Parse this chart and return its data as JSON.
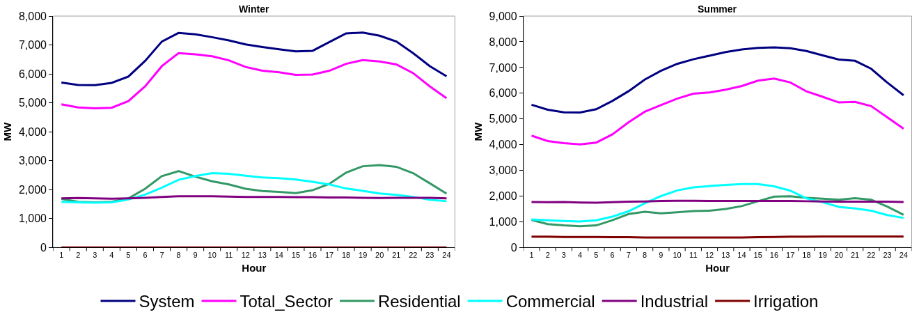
{
  "chart_data": [
    {
      "type": "line",
      "title": "Winter",
      "xlabel": "Hour",
      "ylabel": "MW",
      "x": [
        1,
        2,
        3,
        4,
        5,
        6,
        7,
        8,
        9,
        10,
        11,
        12,
        13,
        14,
        15,
        16,
        17,
        18,
        19,
        20,
        21,
        22,
        23,
        24
      ],
      "xlim": [
        0.5,
        24.5
      ],
      "xticks": [
        1,
        2,
        3,
        4,
        5,
        6,
        7,
        8,
        9,
        10,
        11,
        12,
        13,
        14,
        15,
        16,
        17,
        18,
        19,
        20,
        21,
        22,
        23,
        24
      ],
      "ylim": [
        0,
        8000
      ],
      "yticks": [
        {
          "value": 0,
          "label": "0"
        },
        {
          "value": 1000,
          "label": "1,000"
        },
        {
          "value": 2000,
          "label": "2,000"
        },
        {
          "value": 3000,
          "label": "3,000"
        },
        {
          "value": 4000,
          "label": "4,000"
        },
        {
          "value": 5000,
          "label": "5,000"
        },
        {
          "value": 6000,
          "label": "6,000"
        },
        {
          "value": 7000,
          "label": "7,000"
        },
        {
          "value": 8000,
          "label": "8,000"
        }
      ],
      "grid": false,
      "marker": "none",
      "line_style": "solid",
      "legend": "bottom",
      "series": [
        {
          "name": "System",
          "color": "#000080",
          "values": [
            5700,
            5620,
            5610,
            5690,
            5910,
            6450,
            7120,
            7420,
            7370,
            7270,
            7160,
            7020,
            6930,
            6850,
            6780,
            6800,
            7100,
            7400,
            7430,
            7320,
            7120,
            6720,
            6270,
            5920
          ]
        },
        {
          "name": "Total_Sector",
          "color": "#ff00ff",
          "values": [
            4950,
            4840,
            4810,
            4830,
            5060,
            5570,
            6270,
            6720,
            6680,
            6610,
            6470,
            6240,
            6110,
            6060,
            5970,
            5980,
            6110,
            6350,
            6480,
            6430,
            6330,
            6030,
            5570,
            5160
          ]
        },
        {
          "name": "Residential",
          "color": "#339966",
          "values": [
            1680,
            1580,
            1560,
            1580,
            1700,
            2030,
            2470,
            2640,
            2450,
            2290,
            2180,
            2030,
            1950,
            1920,
            1880,
            1980,
            2200,
            2590,
            2810,
            2850,
            2790,
            2570,
            2220,
            1860
          ]
        },
        {
          "name": "Commercial",
          "color": "#00ffff",
          "values": [
            1580,
            1560,
            1550,
            1560,
            1660,
            1830,
            2070,
            2340,
            2470,
            2570,
            2550,
            2480,
            2420,
            2400,
            2350,
            2270,
            2180,
            2040,
            1960,
            1870,
            1820,
            1750,
            1650,
            1600
          ]
        },
        {
          "name": "Industrial",
          "color": "#800080",
          "values": [
            1700,
            1710,
            1700,
            1690,
            1700,
            1720,
            1750,
            1770,
            1770,
            1770,
            1760,
            1750,
            1750,
            1750,
            1740,
            1740,
            1730,
            1730,
            1720,
            1710,
            1720,
            1720,
            1720,
            1700
          ]
        },
        {
          "name": "Irrigation",
          "color": "#800000",
          "values": [
            0,
            0,
            0,
            0,
            0,
            0,
            0,
            0,
            0,
            0,
            0,
            0,
            0,
            0,
            0,
            0,
            0,
            0,
            0,
            0,
            0,
            0,
            0,
            0
          ]
        }
      ]
    },
    {
      "type": "line",
      "title": "Summer",
      "xlabel": "Hour",
      "ylabel": "MW",
      "x": [
        1,
        2,
        3,
        4,
        5,
        6,
        7,
        8,
        9,
        10,
        11,
        12,
        13,
        14,
        15,
        16,
        17,
        18,
        19,
        20,
        21,
        22,
        23,
        24
      ],
      "xlim": [
        0.5,
        24.5
      ],
      "xticks": [
        1,
        2,
        3,
        4,
        5,
        6,
        7,
        8,
        9,
        10,
        11,
        12,
        13,
        14,
        15,
        16,
        17,
        18,
        19,
        20,
        21,
        22,
        23,
        24
      ],
      "ylim": [
        0,
        9000
      ],
      "yticks": [
        {
          "value": 0,
          "label": "0"
        },
        {
          "value": 1000,
          "label": "1,000"
        },
        {
          "value": 2000,
          "label": "2,000"
        },
        {
          "value": 3000,
          "label": "3,000"
        },
        {
          "value": 4000,
          "label": "4,000"
        },
        {
          "value": 5000,
          "label": "5,000"
        },
        {
          "value": 6000,
          "label": "6,000"
        },
        {
          "value": 7000,
          "label": "7,000"
        },
        {
          "value": 8000,
          "label": "8,000"
        },
        {
          "value": 9000,
          "label": "9,000"
        }
      ],
      "grid": false,
      "marker": "none",
      "line_style": "solid",
      "legend": "bottom",
      "series": [
        {
          "name": "System",
          "color": "#000080",
          "values": [
            5550,
            5360,
            5260,
            5250,
            5380,
            5700,
            6080,
            6530,
            6870,
            7140,
            7320,
            7460,
            7600,
            7700,
            7760,
            7780,
            7750,
            7640,
            7470,
            7310,
            7260,
            6950,
            6410,
            5920
          ]
        },
        {
          "name": "Total_Sector",
          "color": "#ff00ff",
          "values": [
            4350,
            4140,
            4060,
            4010,
            4080,
            4400,
            4870,
            5280,
            5540,
            5790,
            5980,
            6030,
            6140,
            6280,
            6490,
            6570,
            6420,
            6070,
            5860,
            5640,
            5660,
            5500,
            5060,
            4620
          ]
        },
        {
          "name": "Residential",
          "color": "#339966",
          "values": [
            1070,
            910,
            860,
            830,
            860,
            1060,
            1300,
            1390,
            1330,
            1370,
            1420,
            1430,
            1500,
            1610,
            1800,
            1980,
            1990,
            1930,
            1900,
            1860,
            1920,
            1860,
            1590,
            1270
          ]
        },
        {
          "name": "Commercial",
          "color": "#00ffff",
          "values": [
            1090,
            1060,
            1030,
            1010,
            1060,
            1200,
            1410,
            1720,
            2000,
            2220,
            2340,
            2390,
            2430,
            2470,
            2470,
            2380,
            2210,
            1910,
            1760,
            1580,
            1520,
            1430,
            1260,
            1150
          ]
        },
        {
          "name": "Industrial",
          "color": "#800080",
          "values": [
            1770,
            1760,
            1770,
            1750,
            1740,
            1760,
            1780,
            1790,
            1810,
            1820,
            1820,
            1810,
            1810,
            1810,
            1810,
            1810,
            1810,
            1800,
            1790,
            1780,
            1780,
            1780,
            1780,
            1770
          ]
        },
        {
          "name": "Irrigation",
          "color": "#800000",
          "values": [
            420,
            420,
            410,
            410,
            410,
            400,
            400,
            390,
            390,
            390,
            390,
            390,
            390,
            390,
            400,
            410,
            420,
            420,
            430,
            430,
            430,
            430,
            430,
            430
          ]
        }
      ]
    }
  ]
}
